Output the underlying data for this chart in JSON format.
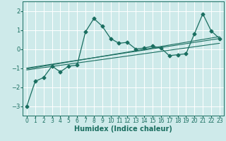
{
  "xlabel": "Humidex (Indice chaleur)",
  "bg_color": "#ceeaea",
  "grid_color": "#ffffff",
  "line_color": "#1a6e60",
  "xlim": [
    -0.5,
    23.5
  ],
  "ylim": [
    -3.5,
    2.5
  ],
  "xticks": [
    0,
    1,
    2,
    3,
    4,
    5,
    6,
    7,
    8,
    9,
    10,
    11,
    12,
    13,
    14,
    15,
    16,
    17,
    18,
    19,
    20,
    21,
    22,
    23
  ],
  "yticks": [
    -3,
    -2,
    -1,
    0,
    1,
    2
  ],
  "series": [
    [
      0,
      -3.0
    ],
    [
      1,
      -1.7
    ],
    [
      2,
      -1.5
    ],
    [
      3,
      -0.9
    ],
    [
      4,
      -1.2
    ],
    [
      5,
      -0.9
    ],
    [
      6,
      -0.85
    ],
    [
      7,
      0.9
    ],
    [
      8,
      1.6
    ],
    [
      9,
      1.2
    ],
    [
      10,
      0.55
    ],
    [
      11,
      0.3
    ],
    [
      12,
      0.35
    ],
    [
      13,
      0.0
    ],
    [
      14,
      0.05
    ],
    [
      15,
      0.15
    ],
    [
      16,
      0.05
    ],
    [
      17,
      -0.35
    ],
    [
      18,
      -0.3
    ],
    [
      19,
      -0.25
    ],
    [
      20,
      0.8
    ],
    [
      21,
      1.85
    ],
    [
      22,
      0.95
    ],
    [
      23,
      0.55
    ]
  ],
  "straight_lines": [
    [
      [
        0,
        -1.0
      ],
      [
        23,
        0.55
      ]
    ],
    [
      [
        0,
        -1.1
      ],
      [
        23,
        0.3
      ]
    ],
    [
      [
        0,
        -1.05
      ],
      [
        23,
        0.65
      ]
    ]
  ],
  "xlabel_fontsize": 7,
  "tick_fontsize": 5.5,
  "marker_size": 2.5
}
